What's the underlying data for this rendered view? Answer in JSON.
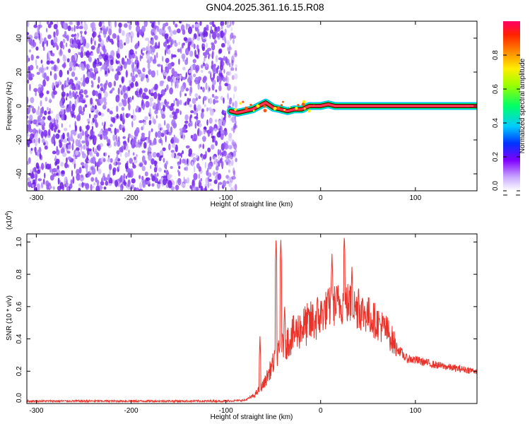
{
  "title": "GN04.2025.361.16.15.R08",
  "chart_data": [
    {
      "type": "heatmap",
      "title": "",
      "xlabel": "Height of straight line (km)",
      "ylabel": "Frequency (Hz)",
      "xlim": [
        -310,
        165
      ],
      "ylim": [
        -50,
        50
      ],
      "x_ticks": [
        -300,
        -200,
        -100,
        0,
        100
      ],
      "y_ticks": [
        -40,
        -20,
        0,
        20,
        40
      ],
      "noise_region_x": [
        -310,
        -92
      ],
      "signal_line": {
        "frequency": 0,
        "x": [
          -95,
          -88,
          -80,
          -72,
          -65,
          -58,
          -50,
          -42,
          -35,
          -28,
          -20,
          -12,
          -5,
          0,
          8,
          15,
          40,
          80,
          120,
          165
        ],
        "freq_offset": [
          -3,
          -4,
          -3,
          -2,
          0,
          2,
          -1,
          -2,
          -3,
          -2,
          -2,
          0,
          0,
          0,
          1,
          0,
          0,
          0,
          0,
          0
        ]
      },
      "colorbar": {
        "label": "Normalized spectral amplitude",
        "range": [
          0,
          1
        ],
        "ticks": [
          0.0,
          0.2,
          0.4,
          0.6,
          0.8
        ],
        "tick_labels": [
          "0.0",
          "0.2",
          "0.4",
          "0.6",
          "0.8"
        ]
      }
    },
    {
      "type": "line",
      "title": "",
      "xlabel": "Height of straight line (km)",
      "ylabel": "SNR (10 * v/v)",
      "y_multiplier": "(x10",
      "y_multiplier_exp": "4",
      "y_multiplier_close": ")",
      "xlim": [
        -310,
        165
      ],
      "ylim": [
        0,
        1.05
      ],
      "x_ticks": [
        -300,
        -200,
        -100,
        0,
        100
      ],
      "y_ticks": [
        0.0,
        0.2,
        0.4,
        0.6,
        0.8,
        1.0
      ],
      "y_tick_labels": [
        "0.0",
        "0.2",
        "0.4",
        "0.6",
        "0.8",
        "1.0"
      ],
      "color": "#e8332a",
      "envelope_x": [
        -310,
        -100,
        -80,
        -70,
        -60,
        -50,
        -40,
        -30,
        -20,
        -10,
        0,
        10,
        20,
        30,
        40,
        50,
        60,
        70,
        80,
        90,
        100,
        120,
        140,
        165
      ],
      "envelope_y": [
        0.015,
        0.015,
        0.02,
        0.05,
        0.12,
        0.25,
        0.35,
        0.42,
        0.47,
        0.5,
        0.55,
        0.6,
        0.62,
        0.62,
        0.58,
        0.55,
        0.5,
        0.45,
        0.35,
        0.28,
        0.27,
        0.24,
        0.22,
        0.2
      ],
      "spikes": [
        {
          "x": -64,
          "y": 0.42
        },
        {
          "x": -47,
          "y": 1.02
        },
        {
          "x": -42,
          "y": 1.02
        },
        {
          "x": -38,
          "y": 0.62
        },
        {
          "x": 12,
          "y": 0.93
        },
        {
          "x": 25,
          "y": 1.05
        },
        {
          "x": 33,
          "y": 0.85
        },
        {
          "x": 40,
          "y": 0.74
        }
      ]
    }
  ]
}
